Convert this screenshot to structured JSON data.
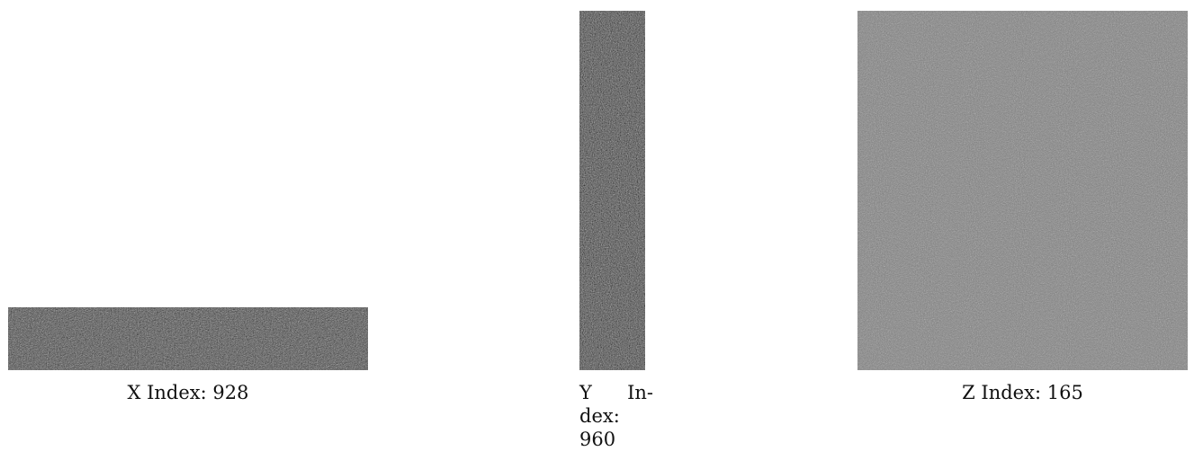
{
  "panels": {
    "x": {
      "caption_prefix": "X Index:",
      "index": "928",
      "noise_base": "#555555"
    },
    "y": {
      "caption_word1": "Y",
      "caption_word2a": "In-",
      "caption_word2b": "dex:",
      "index": "960",
      "noise_base": "#555555"
    },
    "z": {
      "caption_prefix": "Z Index:",
      "index": "165",
      "noise_base": "#828282"
    }
  }
}
